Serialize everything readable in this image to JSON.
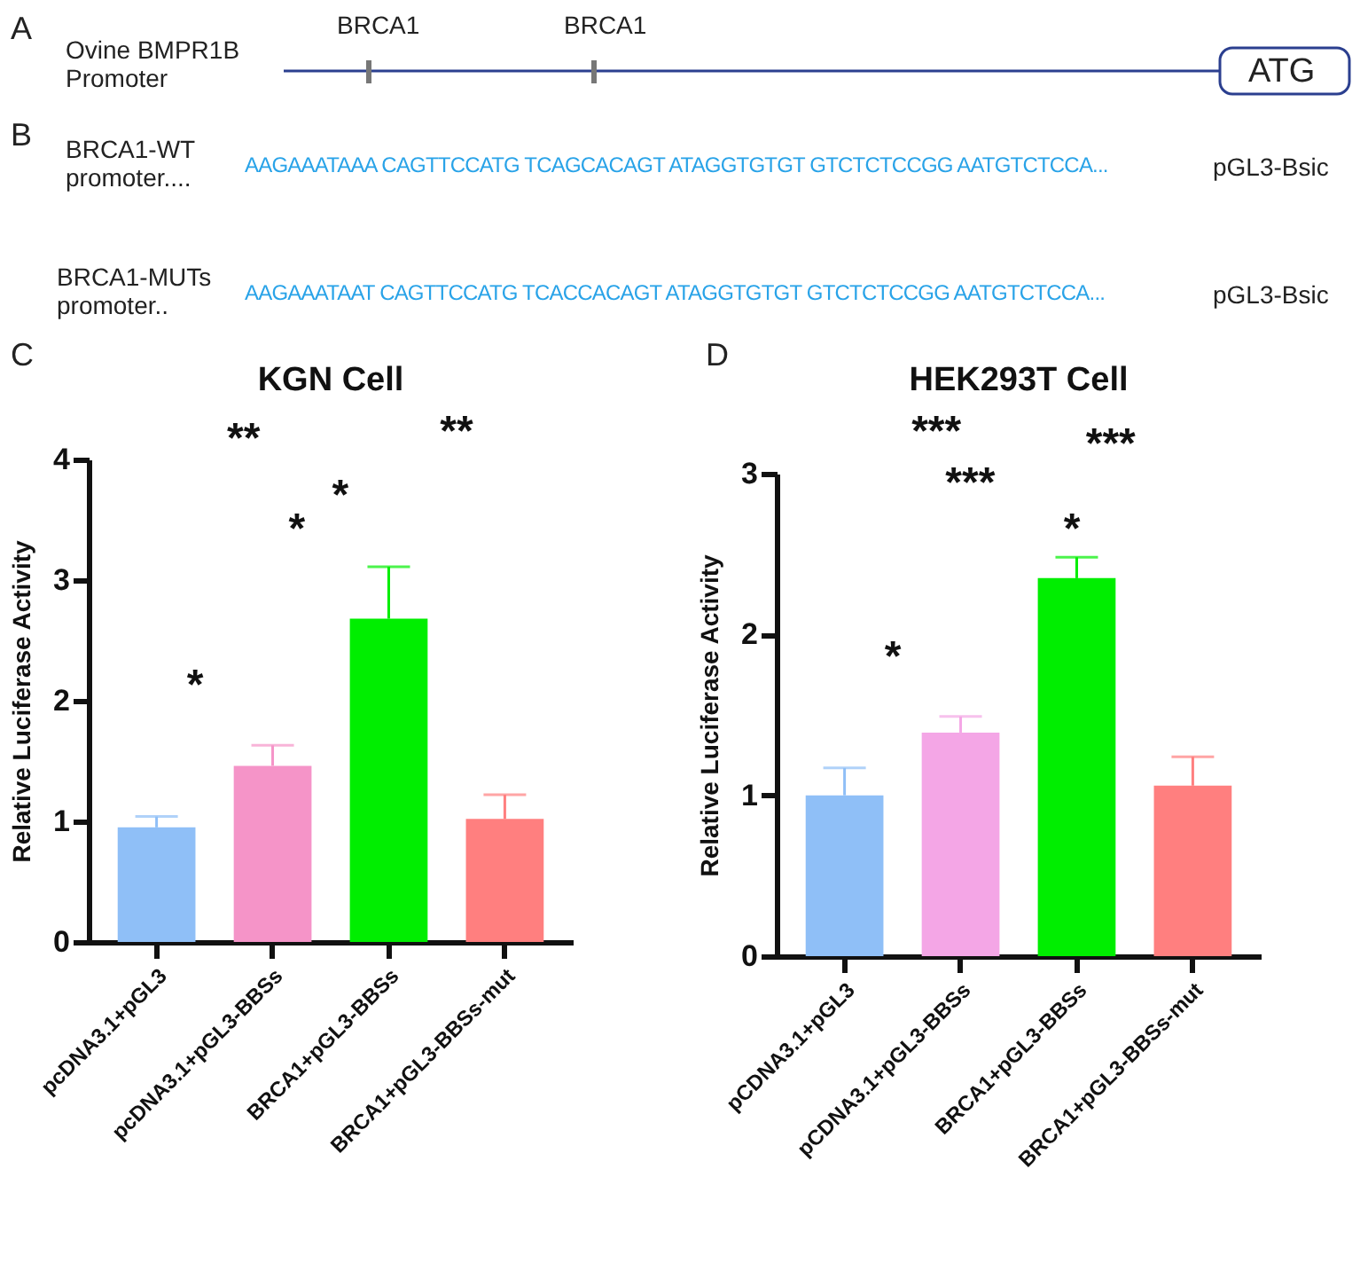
{
  "chart_data": [
    {
      "type": "other",
      "annotations": [
        "A",
        "Ovine BMPR1B Promoter",
        "BRCA1",
        "BRCA1",
        "ATG",
        "B",
        "BRCA1-WT promoter....",
        "AAGAAATAAA CAGTTCCATG TCAGCACAGT ATAGGTGTGT GTCTCTCCGG AATGTCTCCA...",
        "pGL3-Bsic",
        "BRCA1-MUTs promoter..",
        "AAGAAATAAT CAGTTCCATG TCACCACAGT ATAGGTGTGT GTCTCTCCGG AATGTCTCCA...",
        "pGL3-Bsic",
        "C",
        "D"
      ]
    },
    {
      "type": "bar",
      "title": "KGN Cell",
      "ylabel": "Relative Luciferase Activity",
      "categories": [
        "pcDNA3.1+pGL3",
        "pcDNA3.1+pGL3-BBSs",
        "BRCA1+pGL3-BBSs",
        "BRCA1+pGL3-BBSs-mut"
      ],
      "values": [
        0.95,
        1.46,
        2.68,
        1.02
      ],
      "colors": [
        "#8fbff7",
        "#f594c8",
        "#00ee00",
        "#ff7f7f"
      ],
      "errors": [
        [
          0.95,
          1.04
        ],
        [
          1.46,
          1.63
        ],
        [
          2.68,
          3.11
        ],
        [
          1.02,
          1.22
        ]
      ],
      "ylim": [
        0,
        4
      ],
      "yticks": [
        0,
        1,
        2,
        3,
        4
      ],
      "annotations": [
        "**",
        "**",
        "*",
        "*",
        "*"
      ]
    },
    {
      "type": "bar",
      "title": "HEK293T Cell",
      "ylabel": "Relative Luciferase Activity",
      "categories": [
        "pCDNA3.1+pGL3",
        "pCDNA3.1+pGL3-BBSs",
        "BRCA1+pGL3-BBSs",
        "BRCA1+pGL3-BBSs-mut"
      ],
      "values": [
        1.0,
        1.39,
        2.35,
        1.06
      ],
      "colors": [
        "#8fbff7",
        "#f4a6e6",
        "#00ee00",
        "#ff7f7f"
      ],
      "errors": [
        [
          1.0,
          1.17
        ],
        [
          1.39,
          1.49
        ],
        [
          2.35,
          2.48
        ],
        [
          1.06,
          1.24
        ]
      ],
      "ylim": [
        0,
        3
      ],
      "yticks": [
        0,
        1,
        2,
        3
      ],
      "annotations": [
        "***",
        "***",
        "***",
        "*",
        "*"
      ]
    }
  ]
}
